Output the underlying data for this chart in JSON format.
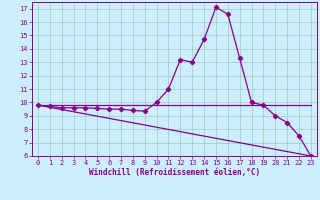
{
  "title": "",
  "xlabel": "Windchill (Refroidissement éolien,°C)",
  "bg_color": "#cceeff",
  "line_color": "#880088",
  "grid_color": "#99ccbb",
  "xlim": [
    -0.5,
    23.5
  ],
  "ylim": [
    6,
    17.5
  ],
  "xticks": [
    0,
    1,
    2,
    3,
    4,
    5,
    6,
    7,
    8,
    9,
    10,
    11,
    12,
    13,
    14,
    15,
    16,
    17,
    18,
    19,
    20,
    21,
    22,
    23
  ],
  "yticks": [
    6,
    7,
    8,
    9,
    10,
    11,
    12,
    13,
    14,
    15,
    16,
    17
  ],
  "curve1_x": [
    0,
    1,
    2,
    3,
    4,
    5,
    6,
    7,
    8,
    9,
    10,
    11,
    12,
    13,
    14,
    15,
    16,
    17,
    18,
    19,
    20,
    21,
    22,
    23
  ],
  "curve1_y": [
    9.8,
    9.7,
    9.6,
    9.6,
    9.6,
    9.55,
    9.5,
    9.5,
    9.4,
    9.35,
    10.0,
    11.0,
    13.2,
    13.0,
    14.7,
    17.1,
    16.6,
    13.3,
    10.0,
    9.8,
    9.0,
    8.5,
    7.5,
    6.0
  ],
  "curve2_x": [
    0,
    23
  ],
  "curve2_y": [
    9.8,
    9.8
  ],
  "curve3_x": [
    0,
    23
  ],
  "curve3_y": [
    9.8,
    6.0
  ]
}
